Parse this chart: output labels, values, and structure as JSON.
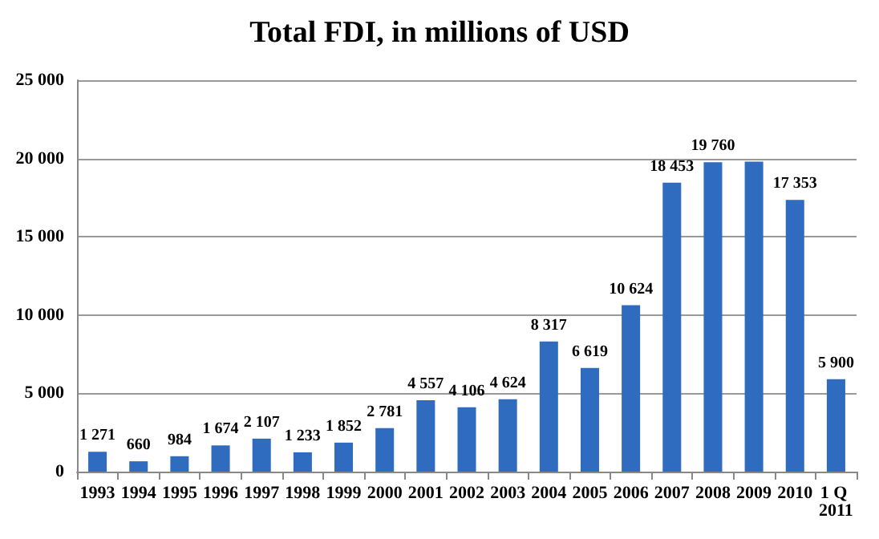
{
  "chart_data": {
    "type": "bar",
    "title": "Total FDI, in millions of USD",
    "categories": [
      "1993",
      "1994",
      "1995",
      "1996",
      "1997",
      "1998",
      "1999",
      "2000",
      "2001",
      "2002",
      "2003",
      "2004",
      "2005",
      "2006",
      "2007",
      "2008",
      "2009",
      "2010",
      "1 Q 2011"
    ],
    "values": [
      1271,
      660,
      984,
      1674,
      2107,
      1233,
      1852,
      2781,
      4557,
      4106,
      4624,
      8317,
      6619,
      10624,
      18453,
      19760,
      19800,
      17353,
      5900
    ],
    "value_labels": [
      "1 271",
      "660",
      "984",
      "1 674",
      "2 107",
      "1 233",
      "1 852",
      "2 781",
      "4 557",
      "4 106",
      "4 624",
      "8 317",
      "6 619",
      "10 624",
      "18 453",
      "19 760",
      null,
      "17 353",
      "5 900"
    ],
    "color": "#2f6cbf",
    "ylim": [
      0,
      25000
    ],
    "yticks": [
      0,
      {
        "value": 5000,
        "label": "5 000"
      },
      {
        "value": 10000,
        "label": "10 000"
      },
      {
        "value": 15000,
        "label": "15 000"
      },
      {
        "value": 20000,
        "label": "20 000"
      },
      {
        "value": 25000,
        "label": "25 000"
      }
    ],
    "grid": "y"
  }
}
